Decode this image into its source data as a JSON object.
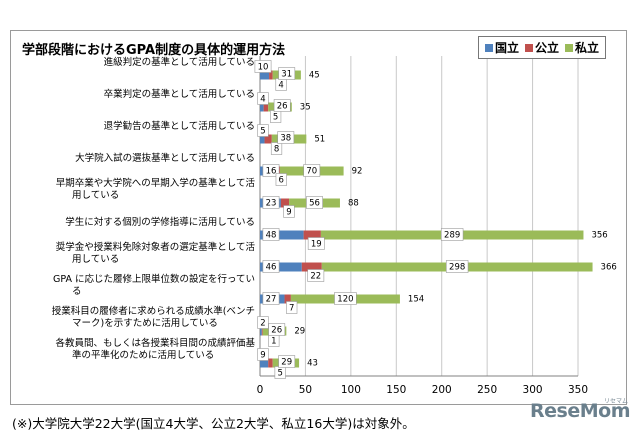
{
  "chart_data": {
    "type": "bar",
    "title": "学部段階におけるGPA制度の具体的運用方法",
    "categories": [
      [
        "進級判定の基準として活用している"
      ],
      [
        "卒業判定の基準として活用している"
      ],
      [
        "退学勧告の基準として活用している"
      ],
      [
        "大学院入試の選抜基準として活用している"
      ],
      [
        "早期卒業や大学院への早期入学の基準として活",
        "用している"
      ],
      [
        "学生に対する個別の学修指導に活用している"
      ],
      [
        "奨学金や授業料免除対象者の選定基準として活",
        "用している"
      ],
      [
        "GPA に応じた履修上限単位数の設定を行ってい",
        "る"
      ],
      [
        "授業科目の履修者に求められる成績水準(ベンチ",
        "マーク)を示すために活用している"
      ],
      [
        "各教員間、もしくは各授業科目間の成績評価基",
        "準の平準化のために活用している"
      ]
    ],
    "series": [
      {
        "name": "国立",
        "color": "#4f81bd",
        "values": [
          10,
          4,
          5,
          16,
          23,
          48,
          46,
          27,
          2,
          9
        ]
      },
      {
        "name": "公立",
        "color": "#c0504d",
        "values": [
          4,
          5,
          8,
          6,
          9,
          19,
          22,
          7,
          1,
          5
        ]
      },
      {
        "name": "私立",
        "color": "#9bbb59",
        "values": [
          31,
          26,
          38,
          70,
          56,
          289,
          298,
          120,
          26,
          29
        ]
      }
    ],
    "totals": [
      45,
      35,
      51,
      92,
      88,
      356,
      366,
      154,
      29,
      43
    ],
    "xlim": [
      0,
      350
    ],
    "xticks": [
      0,
      50,
      100,
      150,
      200,
      250,
      300,
      350
    ],
    "legend_position": "top-right",
    "orientation": "horizontal",
    "grid": "vertical"
  },
  "footnote": "(※)大学院大学22大学(国立4大学、公立2大学、私立16大学)は対象外。",
  "logo": {
    "text": "ReseMom",
    "sub": "リセマム"
  }
}
